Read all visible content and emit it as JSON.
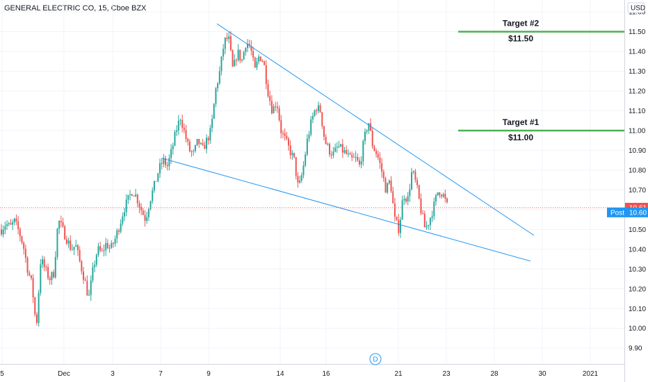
{
  "chart_data": {
    "type": "candlestick",
    "title": "GENERAL ELECTRIC CO, 15, Cboe BZX",
    "currency_label": "USD",
    "ylim": [
      9.82,
      11.66
    ],
    "y_ticks": [
      "11.60",
      "11.50",
      "11.40",
      "11.30",
      "11.20",
      "11.10",
      "11.00",
      "10.90",
      "10.80",
      "10.70",
      "10.60",
      "10.50",
      "10.40",
      "10.30",
      "10.20",
      "10.10",
      "10.00",
      "9.90"
    ],
    "x_ticks": [
      "5",
      "Dec",
      "3",
      "7",
      "9",
      "14",
      "16",
      "21",
      "23",
      "28",
      "30",
      "2021"
    ],
    "colors": {
      "up": "#26a69a",
      "down": "#ef5350",
      "trendline": "#2196f3",
      "target": "#4caf50",
      "last_price": "#ef5350",
      "post_price": "#2196f3"
    },
    "series": [
      {
        "name": "price_path",
        "values": [
          10.5,
          10.53,
          10.51,
          10.54,
          10.49,
          10.42,
          10.3,
          10.22,
          10.0,
          10.35,
          10.3,
          10.25,
          10.28,
          10.55,
          10.5,
          10.45,
          10.4,
          10.42,
          10.33,
          10.25,
          10.15,
          10.3,
          10.4,
          10.38,
          10.43,
          10.4,
          10.45,
          10.52,
          10.6,
          10.65,
          10.7,
          10.66,
          10.6,
          10.55,
          10.65,
          10.72,
          10.8,
          10.85,
          10.82,
          10.9,
          11.0,
          11.07,
          10.98,
          10.9,
          10.88,
          10.95,
          10.9,
          10.95,
          11.0,
          11.2,
          11.3,
          11.45,
          11.47,
          11.3,
          11.4,
          11.35,
          11.45,
          11.42,
          11.3,
          11.38,
          11.35,
          11.2,
          11.1,
          11.15,
          11.0,
          10.95,
          10.9,
          10.85,
          10.7,
          10.8,
          10.95,
          11.05,
          11.12,
          11.1,
          10.95,
          10.9,
          10.88,
          10.92,
          10.9,
          10.88,
          10.85,
          10.86,
          10.82,
          10.95,
          11.05,
          10.92,
          10.88,
          10.8,
          10.7,
          10.75,
          10.55,
          10.5,
          10.68,
          10.65,
          10.8,
          10.72,
          10.6,
          10.5,
          10.55,
          10.62,
          10.7,
          10.68,
          10.62
        ]
      }
    ],
    "trendlines": [
      {
        "name": "upper",
        "from": [
          11.54,
          0
        ],
        "to": [
          10.47,
          0
        ]
      },
      {
        "name": "lower",
        "from": [
          10.86,
          0
        ],
        "to": [
          10.34,
          0
        ]
      }
    ],
    "targets": [
      {
        "label": "Target #2",
        "price_text": "$11.50",
        "value": 11.5
      },
      {
        "label": "Target #1",
        "price_text": "$11.00",
        "value": 11.0
      }
    ],
    "last_price": {
      "value": 10.61,
      "label": "10.61"
    },
    "post_price": {
      "prefix": "Post",
      "value": 10.6,
      "label": "10.60"
    },
    "timescale_marker": "D"
  }
}
